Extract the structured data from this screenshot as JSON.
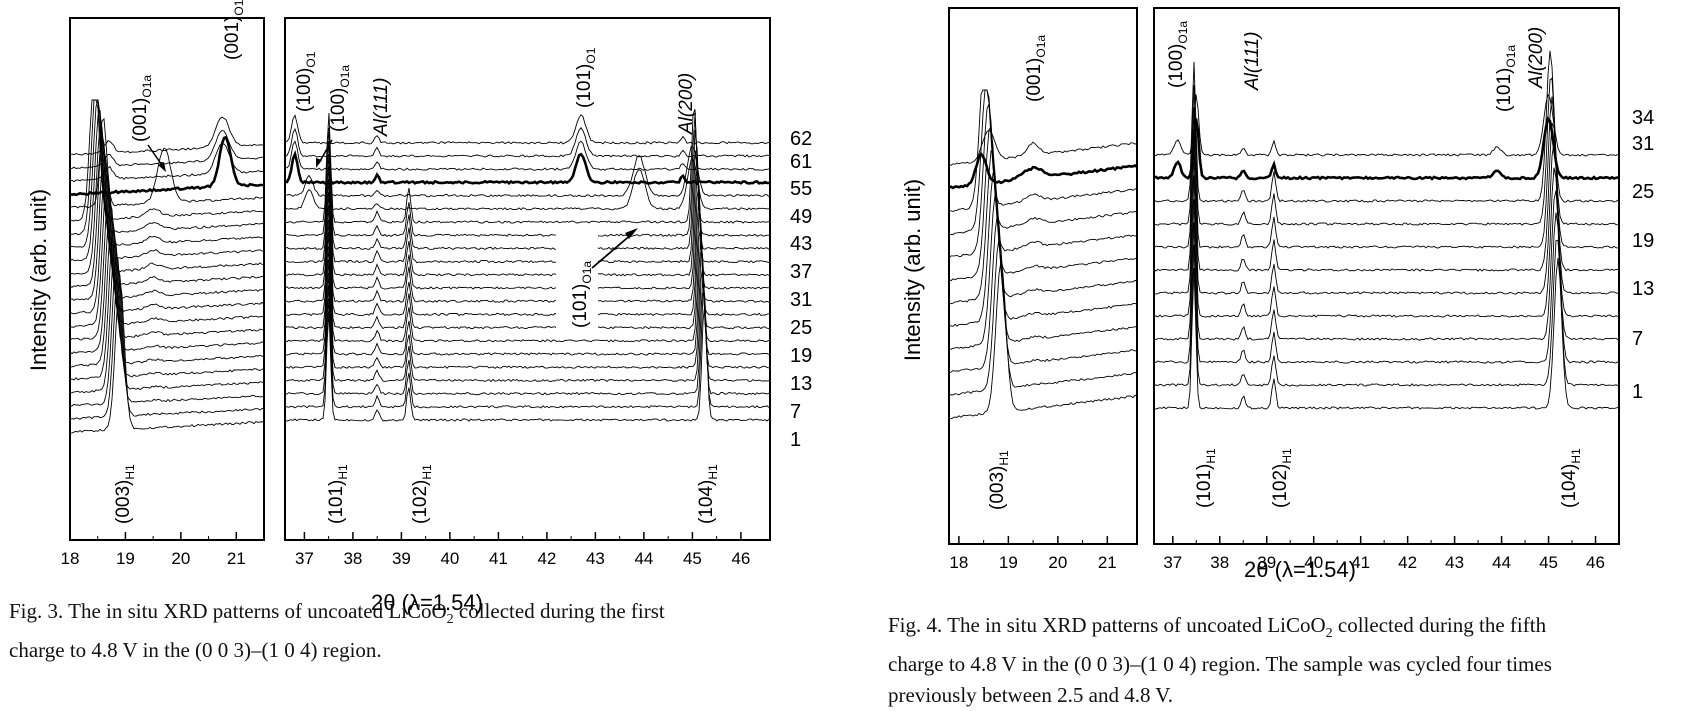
{
  "figures": [
    {
      "id": "fig3",
      "y_axis_label": "Intensity (arb. unit)",
      "x_axis_label": "2θ (λ=1.54)",
      "left_ticks": [
        "18",
        "19",
        "20",
        "21"
      ],
      "right_ticks": [
        "37",
        "38",
        "39",
        "40",
        "41",
        "42",
        "43",
        "44",
        "45",
        "46"
      ],
      "trace_labels": [
        "62",
        "61",
        "55",
        "49",
        "43",
        "37",
        "31",
        "25",
        "19",
        "13",
        "7",
        "1"
      ],
      "peak_labels": {
        "p001_O1": "(001)",
        "p001_O1_sub": "O1",
        "p001_O1a": "(001)",
        "p001_O1a_sub": "O1a",
        "p003_H1": "(003)",
        "p003_H1_sub": "H1",
        "p100_O1": "(100)",
        "p100_O1_sub": "O1",
        "p100_O1a": "(100)",
        "p100_O1a_sub": "O1a",
        "al111": "Al(111)",
        "p101_O1": "(101)",
        "p101_O1_sub": "O1",
        "al200": "Al(200)",
        "p101_O1a": "(101)",
        "p101_O1a_sub": "O1a",
        "p101_H1": "(101)",
        "p101_H1_sub": "H1",
        "p102_H1": "(102)",
        "p102_H1_sub": "H1",
        "p104_H1": "(104)",
        "p104_H1_sub": "H1"
      },
      "caption": {
        "line1_a": "Fig. 3.  The in situ XRD patterns of uncoated LiCoO",
        "line1_sub": "2",
        "line1_b": " collected during the first",
        "line2": "charge to 4.8 V in the (0 0 3)–(1 0 4) region."
      }
    },
    {
      "id": "fig4",
      "y_axis_label": "Intensity (arb. unit)",
      "x_axis_label": "2θ (λ=1.54)",
      "left_ticks": [
        "18",
        "19",
        "20",
        "21"
      ],
      "right_ticks": [
        "37",
        "38",
        "39",
        "40",
        "41",
        "42",
        "43",
        "44",
        "45",
        "46"
      ],
      "trace_labels": [
        "34",
        "31",
        "25",
        "19",
        "13",
        "7",
        "1"
      ],
      "peak_labels": {
        "p001_O1a": "(001)",
        "p001_O1a_sub": "O1a",
        "p003_H1": "(003)",
        "p003_H1_sub": "H1",
        "p100_O1a": "(100)",
        "p100_O1a_sub": "O1a",
        "al111": "Al(111)",
        "p101_O1a": "(101)",
        "p101_O1a_sub": "O1a",
        "al200": "Al(200)",
        "p101_H1": "(101)",
        "p101_H1_sub": "H1",
        "p102_H1": "(102)",
        "p102_H1_sub": "H1",
        "p104_H1": "(104)",
        "p104_H1_sub": "H1"
      },
      "caption": {
        "line1_a": "Fig. 4.  The in situ XRD patterns of uncoated LiCoO",
        "line1_sub": "2",
        "line1_b": " collected during the fifth",
        "line2": "charge to 4.8 V in the (0 0 3)–(1 0 4) region. The sample was cycled four times",
        "line3": "previously between 2.5 and 4.8 V."
      }
    }
  ]
}
